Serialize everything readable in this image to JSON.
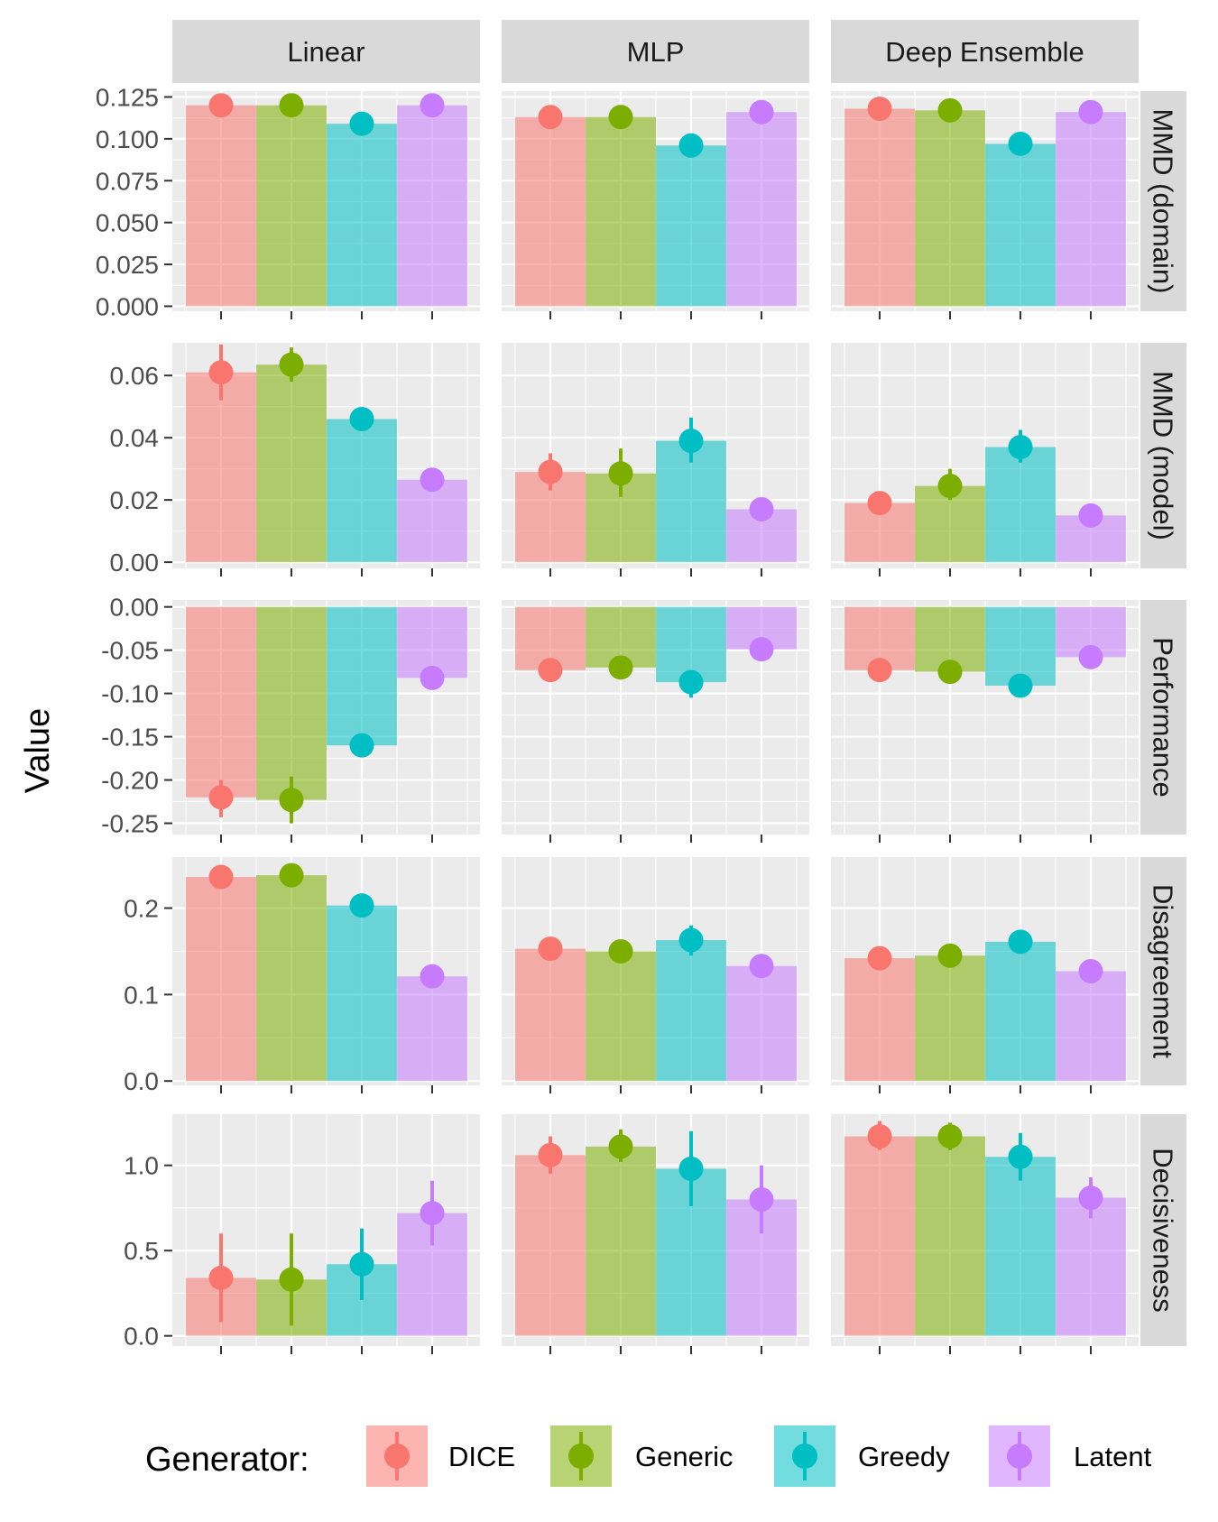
{
  "chart_data": {
    "type": "bar",
    "layout": "facet_grid",
    "ylabel": "Value",
    "xlabel": "",
    "legend": {
      "title": "Generator:",
      "position": "bottom",
      "entries": [
        "DICE",
        "Generic",
        "Greedy",
        "Latent"
      ]
    },
    "colors": {
      "DICE": "#F8766D",
      "Generic": "#7CAE00",
      "Greedy": "#00BFC4",
      "Latent": "#C77CFF",
      "panel_bg": "#EBEBEB",
      "strip_bg": "#D9D9D9",
      "grid": "#FFFFFF"
    },
    "columns": [
      "Linear",
      "MLP",
      "Deep Ensemble"
    ],
    "rows": [
      {
        "label": "MMD (domain)",
        "ylim": [
          -0.003,
          0.1285
        ],
        "ticks": [
          0.0,
          0.025,
          0.05,
          0.075,
          0.1,
          0.125
        ],
        "tick_labels": [
          "0.000",
          "0.025",
          "0.050",
          "0.075",
          "0.100",
          "0.125"
        ],
        "data": [
          [
            {
              "v": 0.12,
              "lo": 0.12,
              "hi": 0.12
            },
            {
              "v": 0.12,
              "lo": 0.12,
              "hi": 0.12
            },
            {
              "v": 0.109,
              "lo": 0.109,
              "hi": 0.109
            },
            {
              "v": 0.12,
              "lo": 0.12,
              "hi": 0.12
            }
          ],
          [
            {
              "v": 0.113,
              "lo": 0.113,
              "hi": 0.113
            },
            {
              "v": 0.113,
              "lo": 0.113,
              "hi": 0.113
            },
            {
              "v": 0.096,
              "lo": 0.096,
              "hi": 0.096
            },
            {
              "v": 0.116,
              "lo": 0.116,
              "hi": 0.116
            }
          ],
          [
            {
              "v": 0.118,
              "lo": 0.118,
              "hi": 0.118
            },
            {
              "v": 0.117,
              "lo": 0.117,
              "hi": 0.117
            },
            {
              "v": 0.097,
              "lo": 0.097,
              "hi": 0.097
            },
            {
              "v": 0.116,
              "lo": 0.116,
              "hi": 0.116
            }
          ]
        ]
      },
      {
        "label": "MMD (model)",
        "ylim": [
          -0.002,
          0.0705
        ],
        "ticks": [
          0.0,
          0.02,
          0.04,
          0.06
        ],
        "tick_labels": [
          "0.00",
          "0.02",
          "0.04",
          "0.06"
        ],
        "data": [
          [
            {
              "v": 0.061,
              "lo": 0.052,
              "hi": 0.07
            },
            {
              "v": 0.0635,
              "lo": 0.058,
              "hi": 0.069
            },
            {
              "v": 0.046,
              "lo": 0.046,
              "hi": 0.046
            },
            {
              "v": 0.0265,
              "lo": 0.0265,
              "hi": 0.0265
            }
          ],
          [
            {
              "v": 0.029,
              "lo": 0.023,
              "hi": 0.035
            },
            {
              "v": 0.0285,
              "lo": 0.021,
              "hi": 0.0365
            },
            {
              "v": 0.039,
              "lo": 0.032,
              "hi": 0.0465
            },
            {
              "v": 0.017,
              "lo": 0.017,
              "hi": 0.017
            }
          ],
          [
            {
              "v": 0.019,
              "lo": 0.019,
              "hi": 0.019
            },
            {
              "v": 0.0245,
              "lo": 0.02,
              "hi": 0.03
            },
            {
              "v": 0.037,
              "lo": 0.032,
              "hi": 0.0425
            },
            {
              "v": 0.015,
              "lo": 0.015,
              "hi": 0.015
            }
          ]
        ]
      },
      {
        "label": "Performance",
        "ylim": [
          -0.263,
          0.008
        ],
        "ticks": [
          0.0,
          -0.05,
          -0.1,
          -0.15,
          -0.2,
          -0.25
        ],
        "tick_labels": [
          "0.00",
          "-0.05",
          "-0.10",
          "-0.15",
          "-0.20",
          "-0.25"
        ],
        "data": [
          [
            {
              "v": -0.22,
              "lo": -0.243,
              "hi": -0.2
            },
            {
              "v": -0.223,
              "lo": -0.25,
              "hi": -0.196
            },
            {
              "v": -0.16,
              "lo": -0.16,
              "hi": -0.16
            },
            {
              "v": -0.082,
              "lo": -0.082,
              "hi": -0.082
            }
          ],
          [
            {
              "v": -0.073,
              "lo": -0.073,
              "hi": -0.073
            },
            {
              "v": -0.07,
              "lo": -0.07,
              "hi": -0.07
            },
            {
              "v": -0.087,
              "lo": -0.105,
              "hi": -0.079
            },
            {
              "v": -0.049,
              "lo": -0.049,
              "hi": -0.049
            }
          ],
          [
            {
              "v": -0.073,
              "lo": -0.073,
              "hi": -0.073
            },
            {
              "v": -0.075,
              "lo": -0.075,
              "hi": -0.075
            },
            {
              "v": -0.091,
              "lo": -0.091,
              "hi": -0.091
            },
            {
              "v": -0.058,
              "lo": -0.058,
              "hi": -0.058
            }
          ]
        ]
      },
      {
        "label": "Disagreement",
        "ylim": [
          -0.005,
          0.259
        ],
        "ticks": [
          0.0,
          0.1,
          0.2
        ],
        "tick_labels": [
          "0.0",
          "0.1",
          "0.2"
        ],
        "data": [
          [
            {
              "v": 0.236,
              "lo": 0.236,
              "hi": 0.236
            },
            {
              "v": 0.238,
              "lo": 0.238,
              "hi": 0.238
            },
            {
              "v": 0.203,
              "lo": 0.203,
              "hi": 0.203
            },
            {
              "v": 0.121,
              "lo": 0.121,
              "hi": 0.121
            }
          ],
          [
            {
              "v": 0.153,
              "lo": 0.153,
              "hi": 0.153
            },
            {
              "v": 0.15,
              "lo": 0.15,
              "hi": 0.15
            },
            {
              "v": 0.163,
              "lo": 0.145,
              "hi": 0.18
            },
            {
              "v": 0.133,
              "lo": 0.133,
              "hi": 0.133
            }
          ],
          [
            {
              "v": 0.142,
              "lo": 0.142,
              "hi": 0.142
            },
            {
              "v": 0.145,
              "lo": 0.145,
              "hi": 0.145
            },
            {
              "v": 0.161,
              "lo": 0.161,
              "hi": 0.161
            },
            {
              "v": 0.127,
              "lo": 0.127,
              "hi": 0.127
            }
          ]
        ]
      },
      {
        "label": "Decisiveness",
        "ylim": [
          -0.06,
          1.3
        ],
        "ticks": [
          0.0,
          0.5,
          1.0
        ],
        "tick_labels": [
          "0.0",
          "0.5",
          "1.0"
        ],
        "data": [
          [
            {
              "v": 0.34,
              "lo": 0.08,
              "hi": 0.6
            },
            {
              "v": 0.33,
              "lo": 0.06,
              "hi": 0.6
            },
            {
              "v": 0.42,
              "lo": 0.21,
              "hi": 0.63
            },
            {
              "v": 0.72,
              "lo": 0.53,
              "hi": 0.91
            }
          ],
          [
            {
              "v": 1.06,
              "lo": 0.95,
              "hi": 1.17
            },
            {
              "v": 1.11,
              "lo": 1.02,
              "hi": 1.21
            },
            {
              "v": 0.98,
              "lo": 0.76,
              "hi": 1.2
            },
            {
              "v": 0.8,
              "lo": 0.6,
              "hi": 1.0
            }
          ],
          [
            {
              "v": 1.17,
              "lo": 1.09,
              "hi": 1.26
            },
            {
              "v": 1.17,
              "lo": 1.09,
              "hi": 1.25
            },
            {
              "v": 1.05,
              "lo": 0.91,
              "hi": 1.19
            },
            {
              "v": 0.81,
              "lo": 0.69,
              "hi": 0.93
            }
          ]
        ]
      }
    ]
  }
}
